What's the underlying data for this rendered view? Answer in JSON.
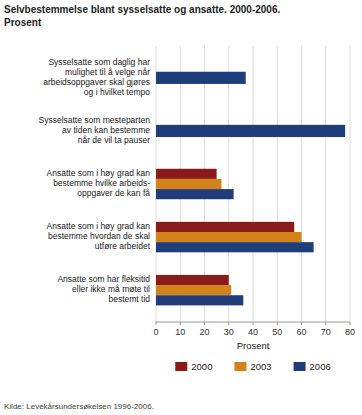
{
  "chart_data": {
    "type": "bar",
    "orientation": "horizontal",
    "title": "Selvbestemmelse blant sysselsatte og ansatte. 2000-2006.\nProsent",
    "categories": [
      "Sysselsatte som daglig har\nmulighet til å velge når\narbeidsoppgaver skal gjøres\nog i hvilket tempo",
      "Sysselsatte som mesteparten\nav tiden kan bestemme\nnår de vil ta pauser",
      "Ansatte som i høy grad kan\nbestemme hvilke arbeids-\noppgaver de kan få",
      "Ansatte som i høy grad kan\nbestemme hvordan de skal\nutføre arbeidet",
      "Ansatte som har fleksitid\neller ikke må møte til\nbestemt tid"
    ],
    "series": [
      {
        "name": "2000",
        "color": "#8B1A1A",
        "values": [
          null,
          null,
          25,
          57,
          30
        ]
      },
      {
        "name": "2003",
        "color": "#D4821A",
        "values": [
          null,
          null,
          27,
          60,
          31
        ]
      },
      {
        "name": "2006",
        "color": "#1F3D7A",
        "values": [
          37,
          78,
          32,
          65,
          36
        ]
      }
    ],
    "xlabel": "Prosent",
    "xlim": [
      0,
      80
    ],
    "xticks": [
      0,
      10,
      20,
      30,
      40,
      50,
      60,
      70,
      80
    ],
    "grid": true,
    "legend": "bottom",
    "annotations": [
      "Kilde: Levekårsundersøkelsen 1996-2006."
    ]
  }
}
